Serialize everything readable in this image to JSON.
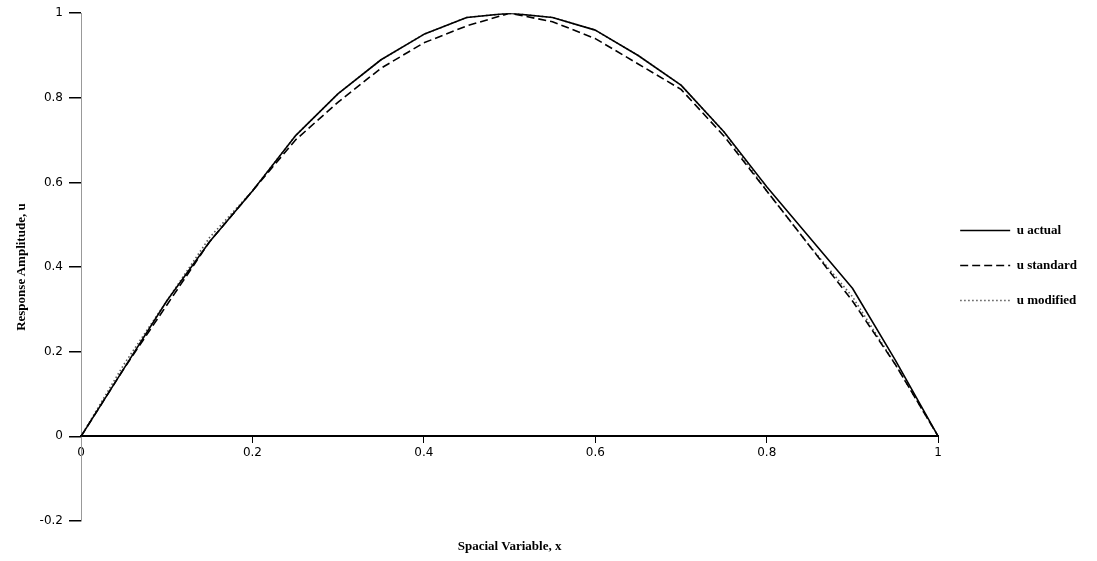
{
  "chart_data": {
    "type": "line",
    "xlabel": "Spacial Variable, x",
    "ylabel": "Response Amplitude, u",
    "x": [
      0,
      0.05,
      0.1,
      0.15,
      0.2,
      0.25,
      0.3,
      0.35,
      0.4,
      0.45,
      0.5,
      0.55,
      0.6,
      0.65,
      0.7,
      0.75,
      0.8,
      0.85,
      0.9,
      0.95,
      1
    ],
    "series": [
      {
        "name": "u actual",
        "color": "#000000",
        "line_style": "solid",
        "values": [
          0,
          0.16,
          0.32,
          0.46,
          0.58,
          0.71,
          0.81,
          0.89,
          0.95,
          0.99,
          1.0,
          0.99,
          0.96,
          0.9,
          0.83,
          0.72,
          0.59,
          0.47,
          0.35,
          0.18,
          0
        ]
      },
      {
        "name": "u standard",
        "color": "#000000",
        "line_style": "dashed",
        "values": [
          0,
          0.16,
          0.31,
          0.46,
          0.58,
          0.7,
          0.79,
          0.87,
          0.93,
          0.97,
          1.0,
          0.98,
          0.94,
          0.88,
          0.82,
          0.71,
          0.58,
          0.45,
          0.32,
          0.17,
          0
        ]
      },
      {
        "name": "u modified",
        "color": "#555555",
        "line_style": "dotted",
        "values": [
          0,
          0.17,
          0.32,
          0.47,
          0.58,
          0.71,
          0.81,
          0.89,
          0.95,
          0.99,
          1.0,
          0.99,
          0.96,
          0.9,
          0.83,
          0.72,
          0.58,
          0.45,
          0.33,
          0.17,
          0
        ]
      }
    ],
    "xlim": [
      0,
      1
    ],
    "xticks": [
      0,
      0.2,
      0.4,
      0.6,
      0.8,
      1
    ],
    "ylim": [
      -0.2,
      1
    ],
    "yticks": [
      -0.2,
      0,
      0.2,
      0.4,
      0.6,
      0.8,
      1
    ],
    "grid": false,
    "legend": "right",
    "marker": "none"
  }
}
